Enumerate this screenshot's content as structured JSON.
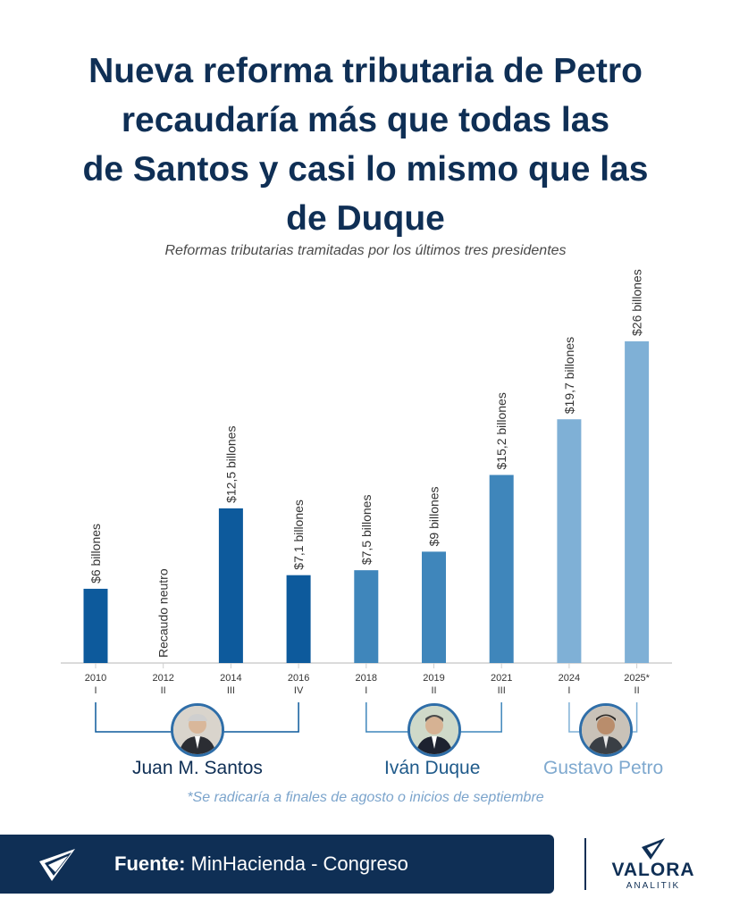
{
  "header": {
    "title_lines": [
      "Nueva reforma tributaria de Petro",
      "recaudaría más que todas las",
      "de Santos y casi lo mismo que las",
      "de Duque"
    ],
    "subtitle": "Reformas tributarias tramitadas por los últimos tres presidentes"
  },
  "chart_data": {
    "type": "bar",
    "title": "Nueva reforma tributaria de Petro recaudaría más que todas las de Santos y casi lo mismo que las de Duque",
    "subtitle": "Reformas tributarias tramitadas por los últimos tres presidentes",
    "unit": "billones",
    "ylim": [
      0,
      26
    ],
    "grid": false,
    "categories": [
      "2010",
      "2012",
      "2014",
      "2016",
      "2018",
      "2019",
      "2021",
      "2024",
      "2025*"
    ],
    "numerals": [
      "I",
      "II",
      "III",
      "IV",
      "I",
      "II",
      "III",
      "I",
      "II"
    ],
    "values": [
      6,
      0,
      12.5,
      7.1,
      7.5,
      9,
      15.2,
      19.7,
      26
    ],
    "labels": [
      "$6 billones",
      "Recaudo neutro",
      "$12,5 billones",
      "$7,1 billones",
      "$7,5 billones",
      "$9 billones",
      "$15,2 billones",
      "$19,7 billones",
      "$26 billones"
    ],
    "president_index": [
      0,
      0,
      0,
      0,
      1,
      1,
      1,
      2,
      2
    ],
    "presidents": [
      {
        "name": "Juan M. Santos",
        "color": "#0d5a9c"
      },
      {
        "name": "Iván Duque",
        "color": "#3f86bb"
      },
      {
        "name": "Gustavo Petro",
        "color": "#7fb0d6"
      }
    ]
  },
  "note": "*Se radicaría a finales de agosto o inicios de septiembre",
  "footer": {
    "source_label": "Fuente:",
    "source_value": "MinHacienda - Congreso",
    "brand_name": "VALORA",
    "brand_sub": "ANALITIK"
  }
}
